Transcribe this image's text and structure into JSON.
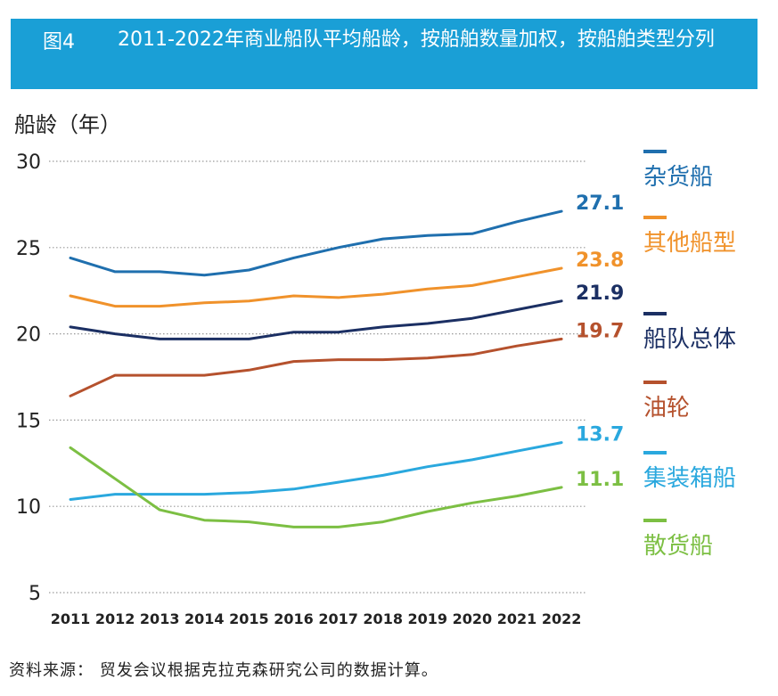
{
  "header": {
    "figure_number": "图4",
    "title": "2011-2022年商业船队平均船龄，按船舶数量加权，按船舶类型分列"
  },
  "ylabel": "船龄（年）",
  "source": "资料来源：  贸发会议根据克拉克森研究公司的数据计算。",
  "chart_data": {
    "type": "line",
    "title": "2011-2022年商业船队平均船龄，按船舶数量加权，按船舶类型分列",
    "xlabel": "",
    "ylabel": "船龄（年）",
    "ylim": [
      5,
      30
    ],
    "yticks": [
      5,
      10,
      15,
      20,
      25,
      30
    ],
    "grid": "horizontal dotted",
    "legend_position": "right",
    "categories": [
      "2011",
      "2012",
      "2013",
      "2014",
      "2015",
      "2016",
      "2017",
      "2018",
      "2019",
      "2020",
      "2021",
      "2022"
    ],
    "series": [
      {
        "name": "杂货船",
        "color": "#1f6fae",
        "end_label": "27.1",
        "values": [
          24.4,
          23.6,
          23.6,
          23.4,
          23.7,
          24.4,
          25.0,
          25.5,
          25.7,
          25.8,
          26.5,
          27.1
        ]
      },
      {
        "name": "其他船型",
        "color": "#f0922b",
        "end_label": "23.8",
        "values": [
          22.2,
          21.6,
          21.6,
          21.8,
          21.9,
          22.2,
          22.1,
          22.3,
          22.6,
          22.8,
          23.3,
          23.8
        ]
      },
      {
        "name": "船队总体",
        "color": "#1b2f63",
        "end_label": "21.9",
        "values": [
          20.4,
          20.0,
          19.7,
          19.7,
          19.7,
          20.1,
          20.1,
          20.4,
          20.6,
          20.9,
          21.4,
          21.9
        ]
      },
      {
        "name": "油轮",
        "color": "#b5512d",
        "end_label": "19.7",
        "values": [
          16.4,
          17.6,
          17.6,
          17.6,
          17.9,
          18.4,
          18.5,
          18.5,
          18.6,
          18.8,
          19.3,
          19.7
        ]
      },
      {
        "name": "集装箱船",
        "color": "#2aa8de",
        "end_label": "13.7",
        "values": [
          10.4,
          10.7,
          10.7,
          10.7,
          10.8,
          11.0,
          11.4,
          11.8,
          12.3,
          12.7,
          13.2,
          13.7
        ]
      },
      {
        "name": "散货船",
        "color": "#7cbf43",
        "end_label": "11.1",
        "values": [
          13.4,
          11.6,
          9.8,
          9.2,
          9.1,
          8.8,
          8.8,
          9.1,
          9.7,
          10.2,
          10.6,
          11.1
        ]
      }
    ]
  }
}
